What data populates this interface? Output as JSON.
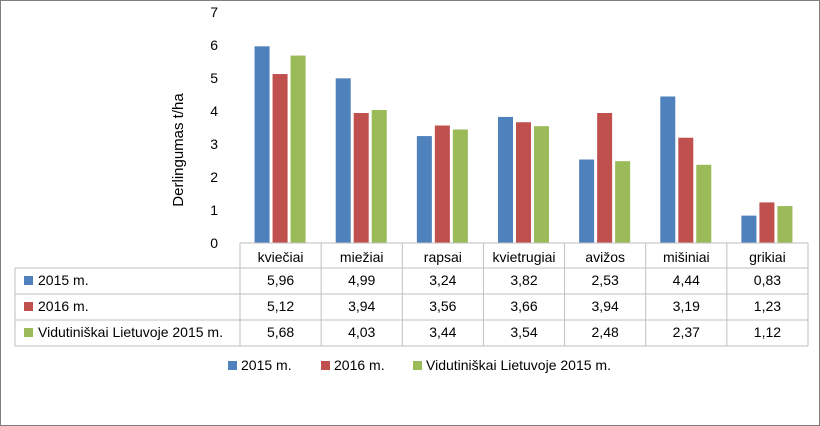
{
  "chart_data": {
    "type": "bar",
    "title": "",
    "xlabel": "",
    "ylabel": "Derlingumas t/ha",
    "ylim": [
      0,
      7
    ],
    "yticks": [
      "0",
      "1",
      "2",
      "3",
      "4",
      "5",
      "6",
      "7"
    ],
    "grid": false,
    "legend": "bottom",
    "data_table": true,
    "categories": [
      "kviečiai",
      "miežiai",
      "rapsai",
      "kvietrugiai",
      "avižos",
      "mišiniai",
      "grikiai"
    ],
    "series": [
      {
        "name": "2015 m.",
        "color": "#4f81bd",
        "values": [
          5.96,
          4.99,
          3.24,
          3.82,
          2.53,
          4.44,
          0.83
        ],
        "labels": [
          "5,96",
          "4,99",
          "3,24",
          "3,82",
          "2,53",
          "4,44",
          "0,83"
        ]
      },
      {
        "name": "2016 m.",
        "color": "#c0504d",
        "values": [
          5.12,
          3.94,
          3.56,
          3.66,
          3.94,
          3.19,
          1.23
        ],
        "labels": [
          "5,12",
          "3,94",
          "3,56",
          "3,66",
          "3,94",
          "3,19",
          "1,23"
        ]
      },
      {
        "name": "Vidutiniškai Lietuvoje 2015 m.",
        "color": "#9bbb59",
        "values": [
          5.68,
          4.03,
          3.44,
          3.54,
          2.48,
          2.37,
          1.12
        ],
        "labels": [
          "5,68",
          "4,03",
          "3,44",
          "3,54",
          "2,48",
          "2,37",
          "1,12"
        ]
      }
    ]
  }
}
